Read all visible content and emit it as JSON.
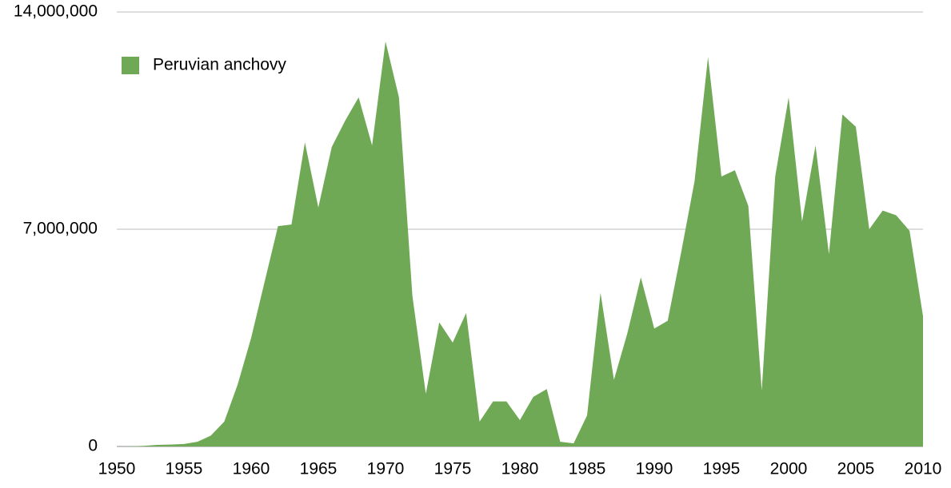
{
  "chart_data": {
    "type": "area",
    "x": [
      1950,
      1951,
      1952,
      1953,
      1954,
      1955,
      1956,
      1957,
      1958,
      1959,
      1960,
      1961,
      1962,
      1963,
      1964,
      1965,
      1966,
      1967,
      1968,
      1969,
      1970,
      1971,
      1972,
      1973,
      1974,
      1975,
      1976,
      1977,
      1978,
      1979,
      1980,
      1981,
      1982,
      1983,
      1984,
      1985,
      1986,
      1987,
      1988,
      1989,
      1990,
      1991,
      1992,
      1993,
      1994,
      1995,
      1996,
      1997,
      1998,
      1999,
      2000,
      2001,
      2002,
      2003,
      2004,
      2005,
      2006,
      2007,
      2008,
      2009,
      2010
    ],
    "series": [
      {
        "name": "Peruvian anchovy",
        "color": "#6fa956",
        "values": [
          0,
          5000,
          20000,
          50000,
          60000,
          80000,
          150000,
          350000,
          800000,
          2000000,
          3500000,
          5300000,
          7100000,
          7150000,
          9800000,
          7700000,
          9650000,
          10500000,
          11250000,
          9700000,
          13050000,
          11250000,
          4850000,
          1700000,
          4000000,
          3350000,
          4300000,
          800000,
          1450000,
          1450000,
          850000,
          1600000,
          1850000,
          150000,
          100000,
          1000000,
          4950000,
          2150000,
          3650000,
          5450000,
          3800000,
          4050000,
          6250000,
          8550000,
          12550000,
          8700000,
          8900000,
          7750000,
          1800000,
          8700000,
          11250000,
          7250000,
          9700000,
          6200000,
          10700000,
          10300000,
          7000000,
          7600000,
          7450000,
          6950000,
          4200000
        ]
      }
    ],
    "xlim": [
      1950,
      2010
    ],
    "xticks": [
      1950,
      1955,
      1960,
      1965,
      1970,
      1975,
      1980,
      1985,
      1990,
      1995,
      2000,
      2005,
      2010
    ],
    "ylim": [
      0,
      14000000
    ],
    "yticks": [
      0,
      {
        "value": 7000000,
        "label": "7,000,000"
      },
      {
        "value": 14000000,
        "label": "14,000,000"
      }
    ],
    "grid": true,
    "legend": "top-left"
  }
}
